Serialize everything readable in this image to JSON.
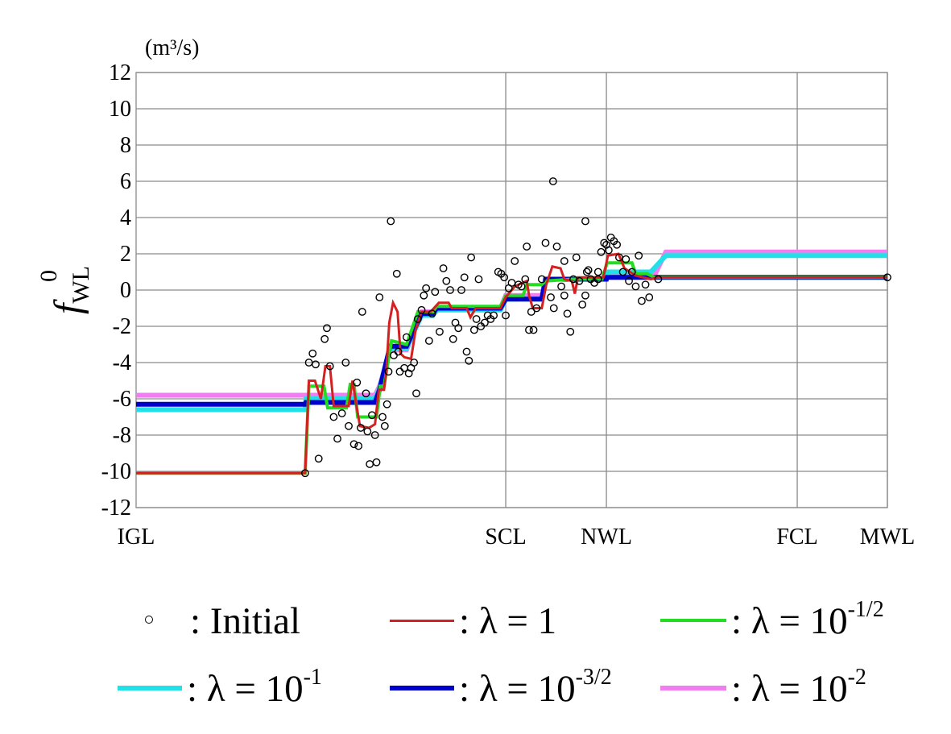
{
  "chart_data": {
    "type": "line",
    "ylabel": "f",
    "ylabel_sup": "0",
    "ylabel_sub": "WL",
    "unit": "(m³/s)",
    "ylim": [
      -12,
      12
    ],
    "yticks": [
      12,
      10,
      8,
      6,
      4,
      2,
      0,
      -2,
      -4,
      -6,
      -8,
      -10,
      -12
    ],
    "xlim": [
      0,
      100
    ],
    "xtick_labels": [
      {
        "label": "IGL",
        "x": 0
      },
      {
        "label": "SCL",
        "x": 49.2
      },
      {
        "label": "NWL",
        "x": 62.6
      },
      {
        "label": "FCL",
        "x": 88.0
      },
      {
        "label": "MWL",
        "x": 100
      }
    ],
    "vgrid": [
      49.2,
      62.6,
      88.0,
      100
    ],
    "legend": {
      "initial": "Initial",
      "l1": "λ = 1",
      "l2": "λ = 10",
      "l2_exp": "-1/2",
      "l3": "λ = 10",
      "l3_exp": "-1",
      "l4": "λ = 10",
      "l4_exp": "-3/2",
      "l5": "λ = 10",
      "l5_exp": "-2",
      "sep": ":"
    },
    "colors": {
      "l1": "#d42020",
      "l2": "#22dd22",
      "l3": "#22e0e8",
      "l4": "#0000cc",
      "l5": "#f07ef0",
      "grid": "#8a8a8a"
    },
    "series": [
      {
        "key": "l5",
        "width": 6,
        "points": [
          [
            0,
            -5.8
          ],
          [
            22.5,
            -5.8
          ],
          [
            22.6,
            -5.8
          ],
          [
            31.8,
            -5.8
          ],
          [
            32.4,
            -5.3
          ],
          [
            33.8,
            -3.3
          ],
          [
            36,
            -3.3
          ],
          [
            38,
            -1.2
          ],
          [
            39.5,
            -1.2
          ],
          [
            40,
            -1.0
          ],
          [
            48.5,
            -1.0
          ],
          [
            49.2,
            -0.3
          ],
          [
            54,
            -0.3
          ],
          [
            54.5,
            0.6
          ],
          [
            62.6,
            0.6
          ],
          [
            62.7,
            0.8
          ],
          [
            69,
            0.8
          ],
          [
            70.5,
            2.1
          ],
          [
            100,
            2.1
          ]
        ]
      },
      {
        "key": "l3",
        "width": 6,
        "points": [
          [
            0,
            -6.6
          ],
          [
            22.5,
            -6.6
          ],
          [
            22.6,
            -6.0
          ],
          [
            31.8,
            -6.0
          ],
          [
            32.4,
            -5.4
          ],
          [
            33.8,
            -3.2
          ],
          [
            36,
            -3.2
          ],
          [
            38,
            -1.4
          ],
          [
            39.5,
            -1.4
          ],
          [
            40,
            -1.1
          ],
          [
            48.5,
            -1.1
          ],
          [
            49.2,
            -0.5
          ],
          [
            54,
            -0.5
          ],
          [
            54.5,
            0.6
          ],
          [
            62.6,
            0.6
          ],
          [
            62.7,
            1.0
          ],
          [
            68.5,
            1.0
          ],
          [
            70.5,
            1.9
          ],
          [
            100,
            1.9
          ]
        ]
      },
      {
        "key": "l4",
        "width": 6,
        "points": [
          [
            0,
            -6.3
          ],
          [
            22.5,
            -6.3
          ],
          [
            22.6,
            -6.2
          ],
          [
            31.8,
            -6.2
          ],
          [
            32.4,
            -5.5
          ],
          [
            33.8,
            -3.1
          ],
          [
            36,
            -3.1
          ],
          [
            38,
            -1.3
          ],
          [
            39.5,
            -1.3
          ],
          [
            40,
            -1.0
          ],
          [
            48.5,
            -1.0
          ],
          [
            49.2,
            -0.5
          ],
          [
            54,
            -0.5
          ],
          [
            54.5,
            0.6
          ],
          [
            62.6,
            0.6
          ],
          [
            62.7,
            0.7
          ],
          [
            69,
            0.7
          ],
          [
            70,
            0.7
          ],
          [
            100,
            0.7
          ]
        ]
      },
      {
        "key": "l2",
        "width": 4,
        "points": [
          [
            0,
            -10.1
          ],
          [
            22.5,
            -10.1
          ],
          [
            23,
            -5.3
          ],
          [
            25,
            -5.3
          ],
          [
            25.5,
            -6.5
          ],
          [
            28,
            -6.5
          ],
          [
            28.5,
            -5.2
          ],
          [
            29,
            -5.2
          ],
          [
            29.5,
            -7.0
          ],
          [
            32,
            -7.0
          ],
          [
            32.5,
            -5.3
          ],
          [
            33,
            -5.3
          ],
          [
            34,
            -2.8
          ],
          [
            36,
            -3.0
          ],
          [
            37.5,
            -1.2
          ],
          [
            39.5,
            -1.2
          ],
          [
            40,
            -0.9
          ],
          [
            48.5,
            -0.9
          ],
          [
            49.2,
            -0.3
          ],
          [
            51.5,
            -0.3
          ],
          [
            52,
            0.3
          ],
          [
            54,
            0.3
          ],
          [
            54.5,
            0.5
          ],
          [
            58,
            0.6
          ],
          [
            62,
            0.6
          ],
          [
            62.7,
            1.5
          ],
          [
            66,
            1.5
          ],
          [
            66.5,
            0.9
          ],
          [
            68,
            0.9
          ],
          [
            69,
            0.7
          ],
          [
            100,
            0.7
          ]
        ]
      },
      {
        "key": "l1",
        "width": 3,
        "points": [
          [
            0,
            -10.1
          ],
          [
            22.5,
            -10.1
          ],
          [
            23,
            -5.0
          ],
          [
            23.8,
            -5.0
          ],
          [
            24.6,
            -6.0
          ],
          [
            25.2,
            -4.2
          ],
          [
            25.8,
            -4.2
          ],
          [
            26.3,
            -6.4
          ],
          [
            28.3,
            -6.4
          ],
          [
            28.8,
            -5.0
          ],
          [
            29.3,
            -6.3
          ],
          [
            29.8,
            -7.5
          ],
          [
            31,
            -7.6
          ],
          [
            31.8,
            -7.4
          ],
          [
            32.3,
            -5.5
          ],
          [
            33,
            -5.5
          ],
          [
            33.3,
            -4.5
          ],
          [
            33.7,
            -1.8
          ],
          [
            34.2,
            -0.7
          ],
          [
            34.8,
            -1.2
          ],
          [
            35.2,
            -3.5
          ],
          [
            35.7,
            -3.7
          ],
          [
            36.6,
            -3.8
          ],
          [
            37.2,
            -2.2
          ],
          [
            38,
            -1.2
          ],
          [
            39.2,
            -1.2
          ],
          [
            40.3,
            -0.7
          ],
          [
            41.6,
            -0.7
          ],
          [
            42,
            -1.0
          ],
          [
            44,
            -1.0
          ],
          [
            44.5,
            -1.5
          ],
          [
            45.2,
            -1.0
          ],
          [
            48.5,
            -1.0
          ],
          [
            49.2,
            -0.4
          ],
          [
            50.4,
            0.2
          ],
          [
            52,
            0.5
          ],
          [
            52.3,
            -0.3
          ],
          [
            52.8,
            -1.0
          ],
          [
            54,
            -1.0
          ],
          [
            54.6,
            0.3
          ],
          [
            55.4,
            1.3
          ],
          [
            56.5,
            1.2
          ],
          [
            57,
            0.6
          ],
          [
            58,
            0.5
          ],
          [
            58.4,
            -0.2
          ],
          [
            58.8,
            0.7
          ],
          [
            62.2,
            0.7
          ],
          [
            62.8,
            1.9
          ],
          [
            64.2,
            2.0
          ],
          [
            65,
            1.2
          ],
          [
            66.5,
            0.8
          ],
          [
            67.5,
            0.7
          ],
          [
            68.5,
            0.6
          ],
          [
            69.5,
            0.7
          ],
          [
            100,
            0.7
          ]
        ]
      }
    ],
    "scatter": [
      [
        22.5,
        -10.1
      ],
      [
        23.0,
        -4.0
      ],
      [
        23.5,
        -3.5
      ],
      [
        23.9,
        -4.1
      ],
      [
        24.3,
        -9.3
      ],
      [
        25.1,
        -2.7
      ],
      [
        25.4,
        -2.1
      ],
      [
        25.8,
        -4.2
      ],
      [
        26.3,
        -7.0
      ],
      [
        26.8,
        -8.2
      ],
      [
        27.4,
        -6.8
      ],
      [
        27.9,
        -4.0
      ],
      [
        28.3,
        -7.5
      ],
      [
        29.0,
        -8.5
      ],
      [
        29.4,
        -5.1
      ],
      [
        29.6,
        -8.6
      ],
      [
        29.9,
        -7.6
      ],
      [
        30.1,
        -1.2
      ],
      [
        30.6,
        -5.7
      ],
      [
        30.8,
        -7.8
      ],
      [
        31.1,
        -9.6
      ],
      [
        31.4,
        -6.9
      ],
      [
        31.8,
        -8.0
      ],
      [
        32.0,
        -9.5
      ],
      [
        32.4,
        -0.4
      ],
      [
        32.8,
        -7.0
      ],
      [
        33.1,
        -7.5
      ],
      [
        33.4,
        -6.3
      ],
      [
        33.6,
        -4.5
      ],
      [
        33.9,
        3.8
      ],
      [
        34.3,
        -3.6
      ],
      [
        34.7,
        0.9
      ],
      [
        34.9,
        -3.4
      ],
      [
        35.1,
        -4.5
      ],
      [
        35.7,
        -4.3
      ],
      [
        36.0,
        -2.6
      ],
      [
        36.3,
        -4.6
      ],
      [
        36.6,
        -4.3
      ],
      [
        37.0,
        -4.0
      ],
      [
        37.3,
        -5.7
      ],
      [
        37.5,
        -1.6
      ],
      [
        38.0,
        -1.1
      ],
      [
        38.3,
        -0.3
      ],
      [
        38.6,
        0.1
      ],
      [
        39.0,
        -2.8
      ],
      [
        39.4,
        -1.3
      ],
      [
        39.8,
        -0.1
      ],
      [
        40.4,
        -2.3
      ],
      [
        40.9,
        1.2
      ],
      [
        41.3,
        0.5
      ],
      [
        41.8,
        0.0
      ],
      [
        42.2,
        -2.7
      ],
      [
        42.5,
        -1.8
      ],
      [
        42.9,
        -2.1
      ],
      [
        43.3,
        0.0
      ],
      [
        43.7,
        0.7
      ],
      [
        44.0,
        -3.4
      ],
      [
        44.3,
        -3.9
      ],
      [
        44.6,
        1.8
      ],
      [
        45.0,
        -2.2
      ],
      [
        45.3,
        -1.6
      ],
      [
        45.6,
        0.6
      ],
      [
        45.9,
        -2.0
      ],
      [
        46.4,
        -1.8
      ],
      [
        46.8,
        -1.4
      ],
      [
        47.2,
        -1.6
      ],
      [
        47.6,
        -1.4
      ],
      [
        48.2,
        1.0
      ],
      [
        48.6,
        0.9
      ],
      [
        49.2,
        -1.4
      ],
      [
        49.6,
        0.1
      ],
      [
        50.0,
        0.4
      ],
      [
        50.4,
        1.6
      ],
      [
        50.9,
        0.3
      ],
      [
        51.3,
        0.2
      ],
      [
        51.8,
        0.6
      ],
      [
        52.0,
        2.4
      ],
      [
        52.3,
        -2.2
      ],
      [
        52.6,
        -1.2
      ],
      [
        52.9,
        -2.2
      ],
      [
        53.3,
        -1.0
      ],
      [
        54.0,
        0.6
      ],
      [
        54.5,
        2.6
      ],
      [
        55.2,
        -0.4
      ],
      [
        55.6,
        -1.0
      ],
      [
        56.0,
        2.4
      ],
      [
        56.6,
        0.2
      ],
      [
        57.0,
        1.6
      ],
      [
        57.4,
        -1.3
      ],
      [
        57.8,
        -2.3
      ],
      [
        58.2,
        0.6
      ],
      [
        58.6,
        1.8
      ],
      [
        59.0,
        0.5
      ],
      [
        59.4,
        -0.8
      ],
      [
        59.8,
        -0.3
      ],
      [
        60.0,
        1.0
      ],
      [
        60.2,
        1.1
      ],
      [
        60.5,
        0.6
      ],
      [
        61.0,
        0.4
      ],
      [
        61.5,
        1.0
      ],
      [
        61.9,
        2.1
      ],
      [
        62.3,
        2.6
      ],
      [
        62.6,
        2.5
      ],
      [
        62.9,
        2.2
      ],
      [
        63.2,
        2.9
      ],
      [
        63.6,
        2.7
      ],
      [
        64.0,
        2.5
      ],
      [
        64.3,
        1.8
      ],
      [
        64.8,
        1.0
      ],
      [
        65.2,
        1.7
      ],
      [
        65.6,
        0.5
      ],
      [
        66.0,
        1.0
      ],
      [
        66.5,
        0.2
      ],
      [
        66.9,
        1.9
      ],
      [
        67.3,
        -0.6
      ],
      [
        67.8,
        0.3
      ],
      [
        68.3,
        -0.4
      ],
      [
        57.0,
        -0.3
      ],
      [
        55.5,
        6.0
      ],
      [
        59.8,
        3.8
      ],
      [
        61.5,
        0.6
      ],
      [
        49.0,
        0.7
      ],
      [
        69.5,
        0.6
      ],
      [
        100,
        0.7
      ]
    ]
  }
}
